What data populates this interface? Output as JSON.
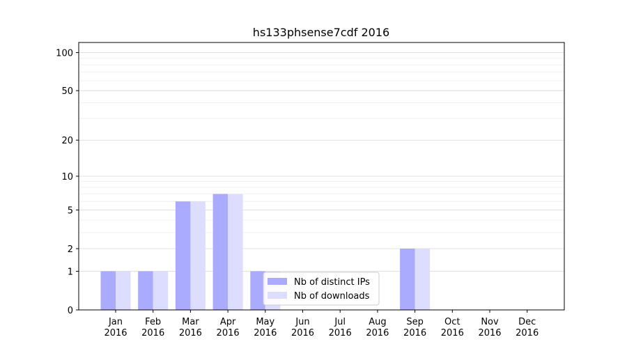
{
  "chart_data": {
    "type": "bar",
    "title": "hs133phsense7cdf 2016",
    "xlabel": "",
    "ylabel": "",
    "y_scale": "log(1+y)",
    "ylim": [
      0,
      120
    ],
    "categories": [
      "Jan\n2016",
      "Feb\n2016",
      "Mar\n2016",
      "Apr\n2016",
      "May\n2016",
      "Jun\n2016",
      "Jul\n2016",
      "Aug\n2016",
      "Sep\n2016",
      "Oct\n2016",
      "Nov\n2016",
      "Dec\n2016"
    ],
    "yticks": [
      0,
      1,
      2,
      5,
      10,
      20,
      50,
      100
    ],
    "series": [
      {
        "name": "Nb of distinct IPs",
        "color": "#aaaaff",
        "values": [
          1,
          1,
          6,
          7,
          1,
          0,
          0,
          0,
          2,
          0,
          0,
          0
        ]
      },
      {
        "name": "Nb of downloads",
        "color": "#ddddff",
        "values": [
          1,
          1,
          6,
          7,
          1,
          0,
          0,
          0,
          2,
          0,
          0,
          0
        ]
      }
    ],
    "grid": "horizontal",
    "legend_position": "lower-center"
  }
}
